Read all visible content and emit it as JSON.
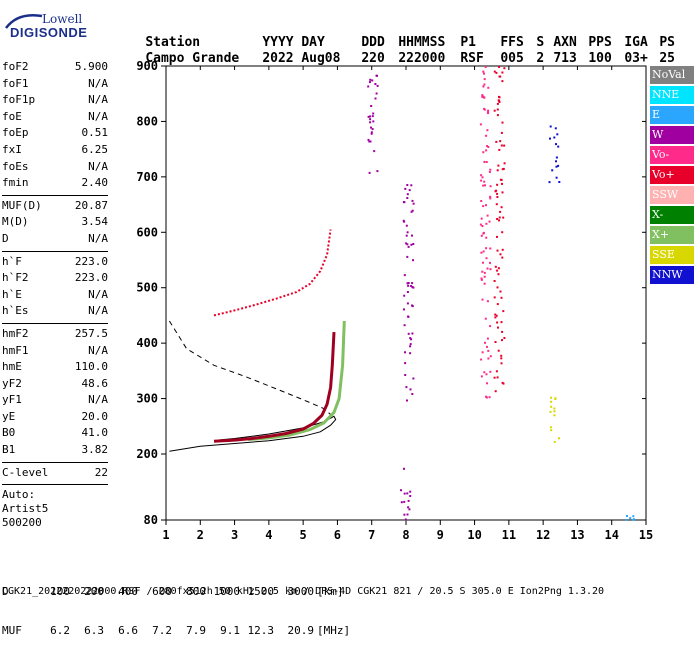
{
  "logo": {
    "line1": "Lowell",
    "line2": "DIGISONDE",
    "color": "#1b2f8a"
  },
  "header": {
    "labels": [
      "Station",
      "YYYY",
      "DAY",
      "DDD",
      "HHMMSS",
      "P1",
      "FFS",
      "S",
      "AXN",
      "PPS",
      "IGA",
      "PS"
    ],
    "values": [
      "Campo Grande",
      "2022",
      "Aug08",
      "220",
      "222000",
      "RSF",
      "005",
      "2",
      "713",
      "100",
      "03+",
      "25"
    ]
  },
  "params": {
    "group1": [
      {
        "name": "foF2",
        "value": "5.900"
      },
      {
        "name": "foF1",
        "value": "N/A"
      },
      {
        "name": "foF1p",
        "value": "N/A"
      },
      {
        "name": "foE",
        "value": "N/A"
      },
      {
        "name": "foEp",
        "value": "0.51"
      },
      {
        "name": "fxI",
        "value": "6.25"
      },
      {
        "name": "foEs",
        "value": "N/A"
      },
      {
        "name": "fmin",
        "value": "2.40"
      }
    ],
    "group2": [
      {
        "name": "MUF(D)",
        "value": "20.87"
      },
      {
        "name": "M(D)",
        "value": "3.54"
      },
      {
        "name": "D",
        "value": "N/A"
      }
    ],
    "group3": [
      {
        "name": "h`F",
        "value": "223.0"
      },
      {
        "name": "h`F2",
        "value": "223.0"
      },
      {
        "name": "h`E",
        "value": "N/A"
      },
      {
        "name": "h`Es",
        "value": "N/A"
      }
    ],
    "group4": [
      {
        "name": "hmF2",
        "value": "257.5"
      },
      {
        "name": "hmF1",
        "value": "N/A"
      },
      {
        "name": "hmE",
        "value": "110.0"
      },
      {
        "name": "yF2",
        "value": "48.6"
      },
      {
        "name": "yF1",
        "value": "N/A"
      },
      {
        "name": "yE",
        "value": "20.0"
      },
      {
        "name": "B0",
        "value": "41.0"
      },
      {
        "name": "B1",
        "value": "3.82"
      }
    ],
    "group5": [
      {
        "name": "C-level",
        "value": "22"
      }
    ],
    "auto_lines": [
      "Auto:",
      "Artist5",
      "500200"
    ]
  },
  "legend": [
    {
      "label": "NoVal",
      "color": "#808080"
    },
    {
      "label": "NNE",
      "color": "#00e5ff"
    },
    {
      "label": "E",
      "color": "#2aa6ff"
    },
    {
      "label": "W",
      "color": "#a000a0"
    },
    {
      "label": "Vo-",
      "color": "#ff2a8a"
    },
    {
      "label": "Vo+",
      "color": "#e8002a"
    },
    {
      "label": "SSW",
      "color": "#ffb0b0"
    },
    {
      "label": "X-",
      "color": "#008000"
    },
    {
      "label": "X+",
      "color": "#80c060"
    },
    {
      "label": "SSE",
      "color": "#d8d800"
    },
    {
      "label": "NNW",
      "color": "#1010d0"
    }
  ],
  "bottom": {
    "d_label": "D",
    "d_values": [
      "100",
      "200",
      "400",
      "600",
      "800",
      "1000",
      "1500",
      "3000"
    ],
    "d_unit": "[km]",
    "muf_label": "MUF",
    "muf_values": [
      "6.2",
      "6.3",
      "6.6",
      "7.2",
      "7.9",
      "9.1",
      "12.3",
      "20.9"
    ],
    "muf_unit": "[MHz]"
  },
  "footer": "CGK21_2022220222000.RSF / 280fx512h 50 kHz 2.5 km / DPS-4D CGK21 821 / 20.5 S 305.0 E Ion2Png 1.3.20",
  "chart_data": {
    "type": "scatter",
    "xlim": [
      1,
      15
    ],
    "ylim": [
      80,
      900
    ],
    "x_ticks": [
      1,
      2,
      3,
      4,
      5,
      6,
      7,
      8,
      9,
      10,
      11,
      12,
      13,
      14,
      15
    ],
    "y_ticks": [
      80,
      200,
      300,
      400,
      500,
      600,
      700,
      800,
      900
    ],
    "scale": "height axis compressed below 200 km",
    "dashed_trace": [
      [
        1.1,
        440
      ],
      [
        1.6,
        390
      ],
      [
        2.4,
        360
      ],
      [
        3.3,
        340
      ],
      [
        4.2,
        318
      ],
      [
        5.0,
        298
      ],
      [
        5.6,
        282
      ],
      [
        5.9,
        266
      ]
    ],
    "profile_curve": [
      [
        1.1,
        205
      ],
      [
        2,
        214
      ],
      [
        3,
        219
      ],
      [
        4,
        224
      ],
      [
        5,
        232
      ],
      [
        5.5,
        240
      ],
      [
        5.8,
        252
      ],
      [
        5.95,
        262
      ],
      [
        5.9,
        268
      ],
      [
        5.6,
        258
      ],
      [
        5,
        247
      ],
      [
        4,
        236
      ],
      [
        3,
        228
      ],
      [
        2.5,
        225
      ]
    ],
    "o_trace": [
      [
        2.4,
        223
      ],
      [
        3,
        225
      ],
      [
        3.5,
        228
      ],
      [
        4,
        232
      ],
      [
        4.5,
        237
      ],
      [
        5,
        245
      ],
      [
        5.3,
        255
      ],
      [
        5.55,
        270
      ],
      [
        5.7,
        290
      ],
      [
        5.8,
        320
      ],
      [
        5.85,
        360
      ],
      [
        5.9,
        420
      ]
    ],
    "x_trace": [
      [
        3.4,
        226
      ],
      [
        4,
        229
      ],
      [
        4.6,
        234
      ],
      [
        5.2,
        244
      ],
      [
        5.6,
        256
      ],
      [
        5.9,
        275
      ],
      [
        6.05,
        300
      ],
      [
        6.15,
        360
      ],
      [
        6.2,
        440
      ]
    ],
    "multihop_trace": [
      [
        2.4,
        450
      ],
      [
        3,
        459
      ],
      [
        3.6,
        469
      ],
      [
        4.2,
        480
      ],
      [
        4.8,
        492
      ],
      [
        5.2,
        507
      ],
      [
        5.5,
        530
      ],
      [
        5.7,
        560
      ],
      [
        5.8,
        605
      ]
    ],
    "echo_columns": [
      {
        "x": 7.0,
        "from": 700,
        "to": 900,
        "color": "#a000a0"
      },
      {
        "x": 8.05,
        "from": 280,
        "to": 690,
        "color": "#a000a0"
      },
      {
        "x": 7.95,
        "from": 80,
        "to": 180,
        "color": "#a000a0"
      },
      {
        "x": 10.3,
        "from": 280,
        "to": 900,
        "color": "#ff2a8a"
      },
      {
        "x": 10.7,
        "from": 310,
        "to": 900,
        "color": "#e8002a"
      },
      {
        "x": 12.3,
        "from": 215,
        "to": 310,
        "color": "#d8d800"
      },
      {
        "x": 12.3,
        "from": 690,
        "to": 800,
        "color": "#1010d0"
      },
      {
        "x": 14.5,
        "from": 80,
        "to": 90,
        "color": "#2aa6ff"
      }
    ]
  }
}
